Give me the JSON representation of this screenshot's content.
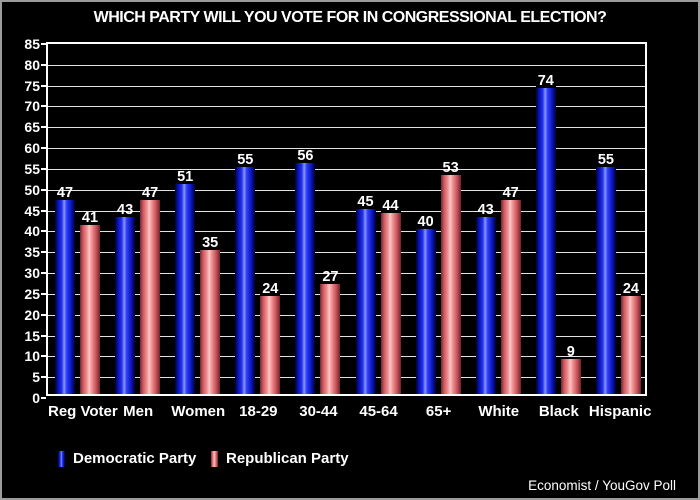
{
  "title": "WHICH PARTY WILL YOU VOTE FOR IN CONGRESSIONAL ELECTION?",
  "source": "Economist / YouGov Poll",
  "colors": {
    "background": "#000000",
    "text": "#ffffff",
    "frame_border": "#9c9c9c",
    "plot_border": "#ffffff",
    "gridline": "#e3e3e3",
    "democratic": "#2433f2",
    "republican": "#ef8e8e"
  },
  "legend": {
    "items": [
      {
        "label": "Democratic Party",
        "color": "#2433f2"
      },
      {
        "label": "Republican Party",
        "color": "#ef8e8e"
      }
    ]
  },
  "chart_data": {
    "type": "bar",
    "title": "WHICH PARTY WILL YOU VOTE FOR IN CONGRESSIONAL ELECTION?",
    "categories": [
      "Reg Voter",
      "Men",
      "Women",
      "18-29",
      "30-44",
      "45-64",
      "65+",
      "White",
      "Black",
      "Hispanic"
    ],
    "series": [
      {
        "name": "Democratic Party",
        "color": "#2433f2",
        "values": [
          47,
          43,
          51,
          55,
          56,
          45,
          40,
          43,
          74,
          55
        ]
      },
      {
        "name": "Republican Party",
        "color": "#ef8e8e",
        "values": [
          41,
          47,
          35,
          24,
          27,
          44,
          53,
          47,
          9,
          24
        ]
      }
    ],
    "xlabel": "",
    "ylabel": "",
    "ylim": [
      0,
      85
    ],
    "ytick_step": 5,
    "grid": "horizontal",
    "legend_position": "bottom-left",
    "value_labels": true,
    "source": "Economist / YouGov Poll"
  }
}
